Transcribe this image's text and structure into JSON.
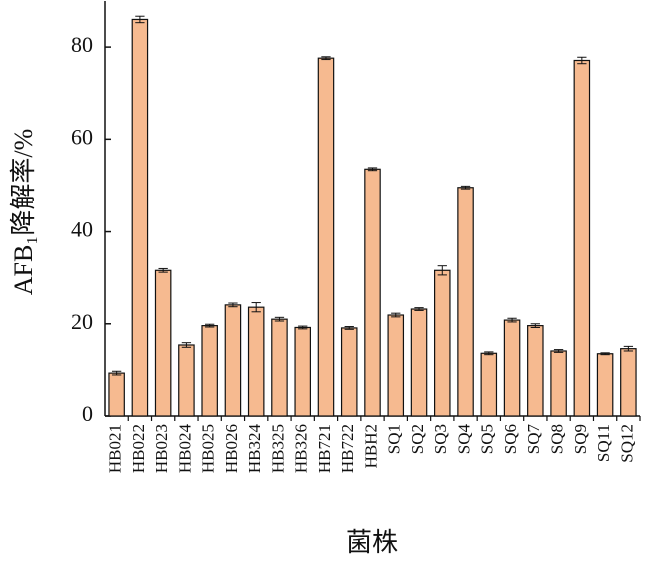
{
  "chart_data": {
    "type": "bar",
    "y_label": "AFB₁降解率/%",
    "x_label": "菌株",
    "categories": [
      "HB021",
      "HB022",
      "HB023",
      "HB024",
      "HB025",
      "HB026",
      "HB324",
      "HB325",
      "HB326",
      "HB721",
      "HB722",
      "HBH2",
      "SQ1",
      "SQ2",
      "SQ3",
      "SQ4",
      "SQ5",
      "SQ6",
      "SQ7",
      "SQ8",
      "SQ9",
      "SQ11",
      "SQ12"
    ],
    "values": [
      9.3,
      86,
      31.6,
      15.4,
      19.6,
      24.1,
      23.6,
      21,
      19.2,
      77.6,
      19.1,
      53.5,
      21.9,
      23.2,
      31.6,
      49.5,
      13.6,
      20.8,
      19.6,
      14.1,
      77.1,
      13.5,
      14.6
    ],
    "errors": [
      0.4,
      0.7,
      0.4,
      0.5,
      0.3,
      0.4,
      1.0,
      0.4,
      0.3,
      0.3,
      0.3,
      0.3,
      0.4,
      0.3,
      1.0,
      0.3,
      0.3,
      0.4,
      0.4,
      0.3,
      0.7,
      0.2,
      0.5
    ],
    "color": "#f6ba90",
    "ylim": [
      0,
      90
    ],
    "yticks": [
      0,
      20,
      40,
      60,
      80
    ]
  }
}
